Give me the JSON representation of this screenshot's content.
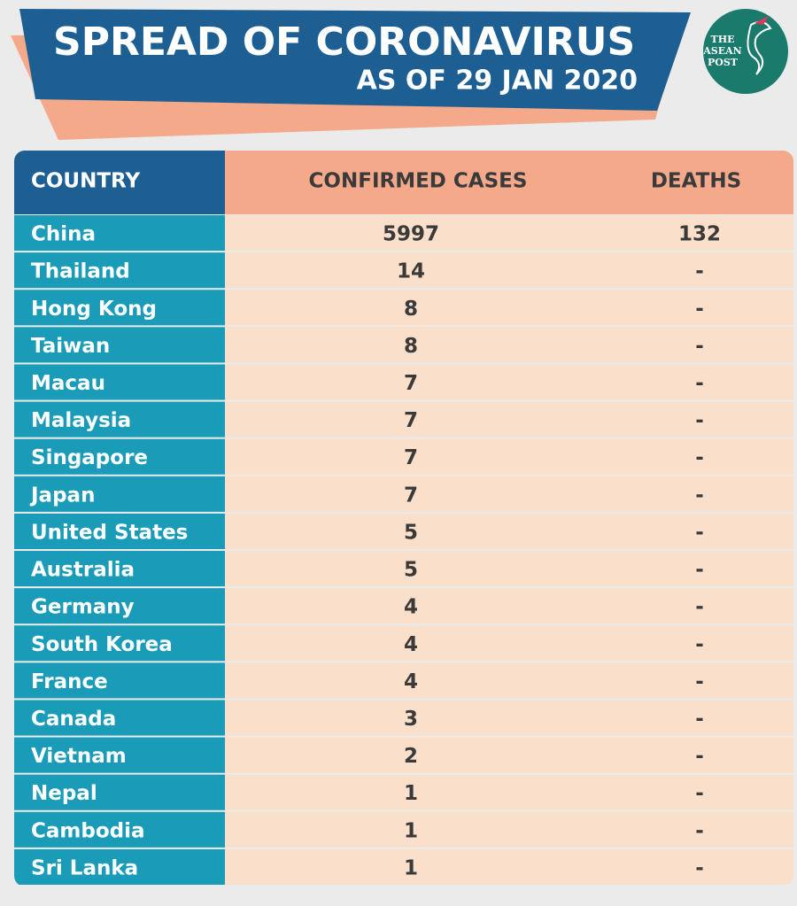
{
  "header": {
    "title": "SPREAD OF CORONAVIRUS",
    "subtitle": "AS OF 29 JAN 2020"
  },
  "logo": {
    "lines": [
      "THE",
      "ASEAN",
      "POST"
    ]
  },
  "table": {
    "columns": [
      "COUNTRY",
      "CONFIRMED CASES",
      "DEATHS"
    ],
    "rows": [
      [
        "China",
        5997,
        132
      ],
      [
        "Thailand",
        14,
        "-"
      ],
      [
        "Hong Kong",
        8,
        "-"
      ],
      [
        "Taiwan",
        8,
        "-"
      ],
      [
        "Macau",
        7,
        "-"
      ],
      [
        "Malaysia",
        7,
        "-"
      ],
      [
        "Singapore",
        7,
        "-"
      ],
      [
        "Japan",
        7,
        "-"
      ],
      [
        "United States",
        5,
        "-"
      ],
      [
        "Australia",
        5,
        "-"
      ],
      [
        "Germany",
        4,
        "-"
      ],
      [
        "South Korea",
        4,
        "-"
      ],
      [
        "France",
        4,
        "-"
      ],
      [
        "Canada",
        3,
        "-"
      ],
      [
        "Vietnam",
        2,
        "-"
      ],
      [
        "Nepal",
        1,
        "-"
      ],
      [
        "Cambodia",
        1,
        "-"
      ],
      [
        "Sri Lanka",
        1,
        "-"
      ]
    ]
  }
}
